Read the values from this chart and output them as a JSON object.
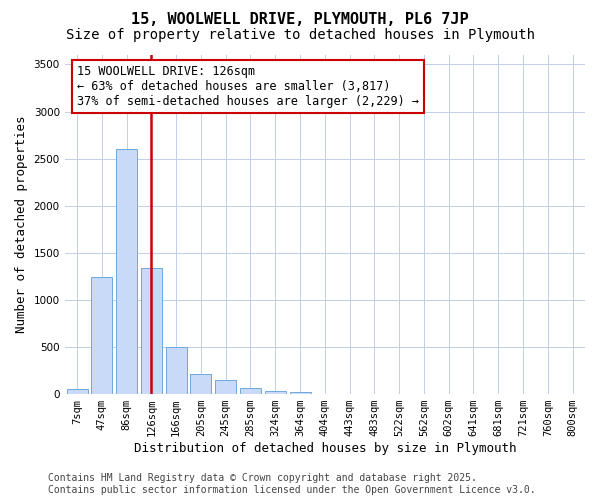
{
  "title_line1": "15, WOOLWELL DRIVE, PLYMOUTH, PL6 7JP",
  "title_line2": "Size of property relative to detached houses in Plymouth",
  "xlabel": "Distribution of detached houses by size in Plymouth",
  "ylabel": "Number of detached properties",
  "categories": [
    "7sqm",
    "47sqm",
    "86sqm",
    "126sqm",
    "166sqm",
    "205sqm",
    "245sqm",
    "285sqm",
    "324sqm",
    "364sqm",
    "404sqm",
    "443sqm",
    "483sqm",
    "522sqm",
    "562sqm",
    "602sqm",
    "641sqm",
    "681sqm",
    "721sqm",
    "760sqm",
    "800sqm"
  ],
  "values": [
    55,
    1240,
    2600,
    1340,
    500,
    210,
    145,
    60,
    30,
    18,
    5,
    2,
    1,
    0,
    0,
    0,
    0,
    0,
    0,
    0,
    0
  ],
  "bar_color": "#c9daf8",
  "bar_edge_color": "#6fa8dc",
  "vline_x_index": 3,
  "vline_color": "#cc0000",
  "annotation_box_text": "15 WOOLWELL DRIVE: 126sqm\n← 63% of detached houses are smaller (3,817)\n37% of semi-detached houses are larger (2,229) →",
  "annotation_box_color": "#cc0000",
  "annotation_box_bg": "#ffffff",
  "annotation_fontsize": 8.5,
  "ylim": [
    0,
    3600
  ],
  "yticks": [
    0,
    500,
    1000,
    1500,
    2000,
    2500,
    3000,
    3500
  ],
  "background_color": "#ffffff",
  "grid_color": "#c0cfe8",
  "footer_line1": "Contains HM Land Registry data © Crown copyright and database right 2025.",
  "footer_line2": "Contains public sector information licensed under the Open Government Licence v3.0.",
  "title_fontsize": 11,
  "subtitle_fontsize": 10,
  "axis_label_fontsize": 9,
  "tick_fontsize": 7.5,
  "footer_fontsize": 7
}
